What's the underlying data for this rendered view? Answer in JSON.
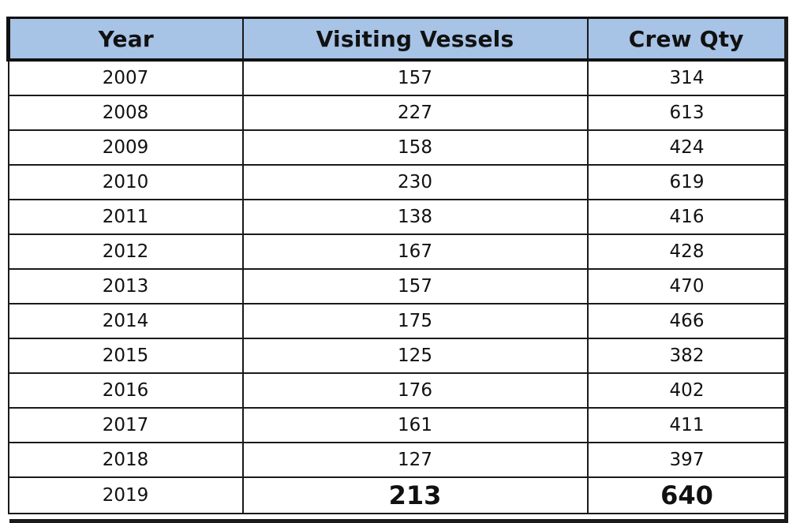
{
  "table": {
    "headers": {
      "year": "Year",
      "vessels": "Visiting Vessels",
      "crew": "Crew Qty"
    },
    "rows": [
      {
        "year": "2007",
        "vessels": "157",
        "crew": "314"
      },
      {
        "year": "2008",
        "vessels": "227",
        "crew": "613"
      },
      {
        "year": "2009",
        "vessels": "158",
        "crew": "424"
      },
      {
        "year": "2010",
        "vessels": "230",
        "crew": "619"
      },
      {
        "year": "2011",
        "vessels": "138",
        "crew": "416"
      },
      {
        "year": "2012",
        "vessels": "167",
        "crew": "428"
      },
      {
        "year": "2013",
        "vessels": "157",
        "crew": "470"
      },
      {
        "year": "2014",
        "vessels": "175",
        "crew": "466"
      },
      {
        "year": "2015",
        "vessels": "125",
        "crew": "382"
      },
      {
        "year": "2016",
        "vessels": "176",
        "crew": "402"
      },
      {
        "year": "2017",
        "vessels": "161",
        "crew": "411"
      },
      {
        "year": "2018",
        "vessels": "127",
        "crew": "397"
      },
      {
        "year": "2019",
        "vessels": "213",
        "crew": "640"
      }
    ]
  },
  "colors": {
    "header_bg": "#a7c3e6",
    "border": "#1a1a1a"
  }
}
